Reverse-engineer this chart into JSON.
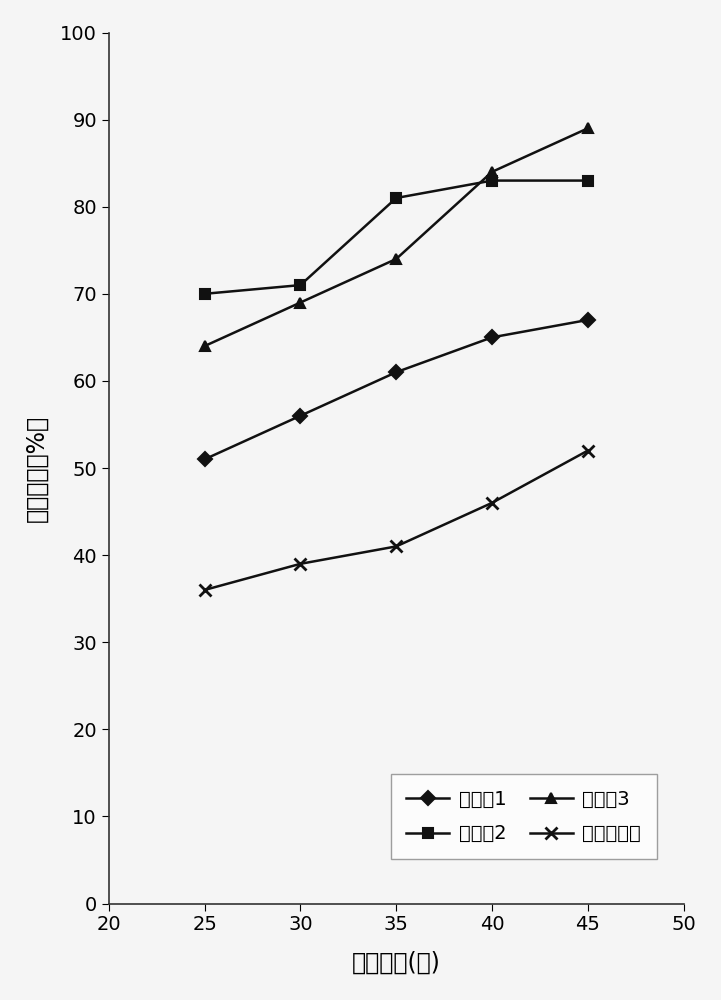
{
  "x": [
    25,
    30,
    35,
    40,
    45
  ],
  "series": [
    {
      "label": "实施例1",
      "y": [
        51,
        56,
        61,
        65,
        67
      ],
      "marker": "D",
      "color": "#111111",
      "linestyle": "-",
      "markersize": 7
    },
    {
      "label": "实施例2",
      "y": [
        70,
        71,
        81,
        83,
        83
      ],
      "marker": "s",
      "color": "#111111",
      "linestyle": "-",
      "markersize": 7
    },
    {
      "label": "实施例3",
      "y": [
        64,
        69,
        74,
        84,
        89
      ],
      "marker": "^",
      "color": "#111111",
      "linestyle": "-",
      "markersize": 7
    },
    {
      "label": "市售某品牌",
      "y": [
        36,
        39,
        41,
        46,
        52
      ],
      "marker": "x",
      "color": "#111111",
      "linestyle": "-",
      "markersize": 8,
      "markeredgewidth": 2
    }
  ],
  "xlabel": "处理时间(月)",
  "ylabel": "絮凝比率（%）",
  "xlim": [
    20,
    50
  ],
  "ylim": [
    0,
    100
  ],
  "xticks": [
    20,
    25,
    30,
    35,
    40,
    45,
    50
  ],
  "yticks": [
    0,
    10,
    20,
    30,
    40,
    50,
    60,
    70,
    80,
    90,
    100
  ],
  "background_color": "#f5f5f5",
  "fontsize_label": 17,
  "fontsize_tick": 14,
  "fontsize_legend": 14
}
